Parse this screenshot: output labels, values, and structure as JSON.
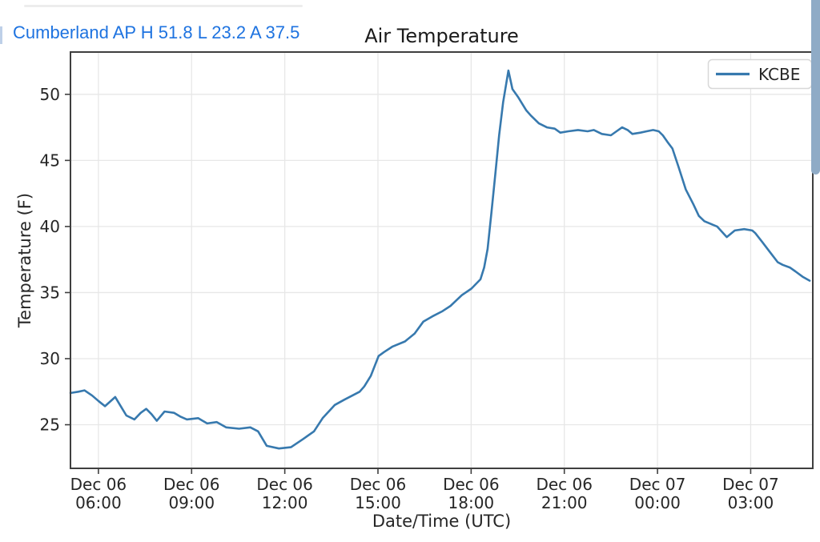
{
  "header": {
    "station_summary": "Cumberland AP H 51.8 L 23.2 A 37.5",
    "station_name": "Cumberland AP",
    "high": 51.8,
    "low": 23.2,
    "average": 37.5,
    "text_color": "#1e73e0"
  },
  "scrollbar": {
    "color": "#8fabc6"
  },
  "chart_data": {
    "type": "line",
    "title": "Air Temperature",
    "xlabel": "Date/Time (UTC)",
    "ylabel": "Temperature (F)",
    "grid": true,
    "legend_position": "upper right",
    "legend": [
      {
        "label": "KCBE",
        "color": "#3779ae"
      }
    ],
    "x_unit": "hours_since_Dec06_0000_UTC",
    "xlim": [
      5.1,
      29.0
    ],
    "ylim": [
      21.7,
      53.2
    ],
    "y_ticks": [
      25,
      30,
      35,
      40,
      45,
      50
    ],
    "x_ticks": [
      {
        "t": 6,
        "date": "Dec 06",
        "time": "06:00"
      },
      {
        "t": 9,
        "date": "Dec 06",
        "time": "09:00"
      },
      {
        "t": 12,
        "date": "Dec 06",
        "time": "12:00"
      },
      {
        "t": 15,
        "date": "Dec 06",
        "time": "15:00"
      },
      {
        "t": 18,
        "date": "Dec 06",
        "time": "18:00"
      },
      {
        "t": 21,
        "date": "Dec 06",
        "time": "21:00"
      },
      {
        "t": 24,
        "date": "Dec 07",
        "time": "00:00"
      },
      {
        "t": 27,
        "date": "Dec 07",
        "time": "03:00"
      }
    ],
    "series": [
      {
        "name": "KCBE",
        "color": "#3779ae",
        "points": [
          [
            5.1,
            27.4
          ],
          [
            5.35,
            27.5
          ],
          [
            5.55,
            27.6
          ],
          [
            5.8,
            27.2
          ],
          [
            6.0,
            26.8
          ],
          [
            6.21,
            26.4
          ],
          [
            6.54,
            27.1
          ],
          [
            6.72,
            26.4
          ],
          [
            6.9,
            25.7
          ],
          [
            7.16,
            25.4
          ],
          [
            7.36,
            25.9
          ],
          [
            7.54,
            26.2
          ],
          [
            7.71,
            25.8
          ],
          [
            7.88,
            25.3
          ],
          [
            8.13,
            26.0
          ],
          [
            8.44,
            25.9
          ],
          [
            8.65,
            25.6
          ],
          [
            8.85,
            25.4
          ],
          [
            9.21,
            25.5
          ],
          [
            9.5,
            25.1
          ],
          [
            9.81,
            25.2
          ],
          [
            10.11,
            24.8
          ],
          [
            10.53,
            24.7
          ],
          [
            10.89,
            24.8
          ],
          [
            11.14,
            24.5
          ],
          [
            11.42,
            23.4
          ],
          [
            11.81,
            23.2
          ],
          [
            12.2,
            23.3
          ],
          [
            12.58,
            23.9
          ],
          [
            12.94,
            24.5
          ],
          [
            13.22,
            25.5
          ],
          [
            13.61,
            26.5
          ],
          [
            13.92,
            26.9
          ],
          [
            14.41,
            27.5
          ],
          [
            14.56,
            27.9
          ],
          [
            14.77,
            28.7
          ],
          [
            15.02,
            30.2
          ],
          [
            15.2,
            30.5
          ],
          [
            15.46,
            30.9
          ],
          [
            15.87,
            31.3
          ],
          [
            16.18,
            31.9
          ],
          [
            16.46,
            32.8
          ],
          [
            16.75,
            33.2
          ],
          [
            17.08,
            33.6
          ],
          [
            17.34,
            34.0
          ],
          [
            17.7,
            34.8
          ],
          [
            18.01,
            35.3
          ],
          [
            18.3,
            36.0
          ],
          [
            18.42,
            36.9
          ],
          [
            18.53,
            38.3
          ],
          [
            18.65,
            41.0
          ],
          [
            18.78,
            44.0
          ],
          [
            18.9,
            46.9
          ],
          [
            19.03,
            49.4
          ],
          [
            19.2,
            51.8
          ],
          [
            19.33,
            50.4
          ],
          [
            19.51,
            49.8
          ],
          [
            19.77,
            48.8
          ],
          [
            19.92,
            48.4
          ],
          [
            20.18,
            47.8
          ],
          [
            20.44,
            47.5
          ],
          [
            20.69,
            47.4
          ],
          [
            20.87,
            47.1
          ],
          [
            21.13,
            47.2
          ],
          [
            21.44,
            47.3
          ],
          [
            21.75,
            47.2
          ],
          [
            21.95,
            47.3
          ],
          [
            22.21,
            47.0
          ],
          [
            22.5,
            46.9
          ],
          [
            22.68,
            47.2
          ],
          [
            22.86,
            47.5
          ],
          [
            23.04,
            47.3
          ],
          [
            23.19,
            47.0
          ],
          [
            23.45,
            47.1
          ],
          [
            23.65,
            47.2
          ],
          [
            23.86,
            47.3
          ],
          [
            24.04,
            47.2
          ],
          [
            24.17,
            46.9
          ],
          [
            24.32,
            46.4
          ],
          [
            24.48,
            45.9
          ],
          [
            24.68,
            44.5
          ],
          [
            24.91,
            42.8
          ],
          [
            25.15,
            41.7
          ],
          [
            25.33,
            40.8
          ],
          [
            25.51,
            40.4
          ],
          [
            25.71,
            40.2
          ],
          [
            25.92,
            40.0
          ],
          [
            26.15,
            39.4
          ],
          [
            26.23,
            39.2
          ],
          [
            26.49,
            39.7
          ],
          [
            26.79,
            39.8
          ],
          [
            27.05,
            39.7
          ],
          [
            27.15,
            39.5
          ],
          [
            27.38,
            38.8
          ],
          [
            27.64,
            38.0
          ],
          [
            27.87,
            37.3
          ],
          [
            28.03,
            37.1
          ],
          [
            28.26,
            36.9
          ],
          [
            28.44,
            36.6
          ],
          [
            28.67,
            36.2
          ],
          [
            28.9,
            35.9
          ]
        ]
      }
    ],
    "style": {
      "grid_color": "#e7e7e7",
      "spine_color": "#3f3f3f",
      "tick_label_color": "#262626",
      "legend_border_color": "#d8d8d8",
      "legend_bg": "#ffffff"
    }
  }
}
